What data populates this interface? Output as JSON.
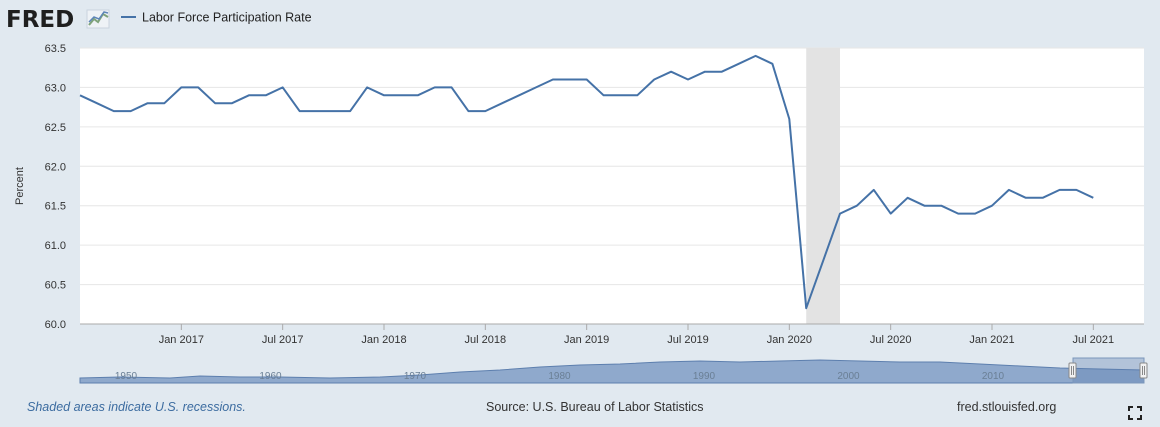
{
  "brand": {
    "logo_text": "FRED"
  },
  "colors": {
    "line": "#4572a7",
    "recession": "#e3e3e3",
    "navigator_fill": "#8fa9cc",
    "background": "#e1e9f0"
  },
  "chart_data": {
    "type": "line",
    "legend": [
      "Labor Force Participation Rate"
    ],
    "ylabel": "Percent",
    "ylim": [
      60.0,
      63.5
    ],
    "yticks": [
      "60.0",
      "60.5",
      "61.0",
      "61.5",
      "62.0",
      "62.5",
      "63.0",
      "63.5"
    ],
    "xrange": [
      "2016-07",
      "2021-10"
    ],
    "xticks": [
      {
        "date": "2017-01",
        "label": "Jan 2017"
      },
      {
        "date": "2017-07",
        "label": "Jul 2017"
      },
      {
        "date": "2018-01",
        "label": "Jan 2018"
      },
      {
        "date": "2018-07",
        "label": "Jul 2018"
      },
      {
        "date": "2019-01",
        "label": "Jan 2019"
      },
      {
        "date": "2019-07",
        "label": "Jul 2019"
      },
      {
        "date": "2020-01",
        "label": "Jan 2020"
      },
      {
        "date": "2020-07",
        "label": "Jul 2020"
      },
      {
        "date": "2021-01",
        "label": "Jan 2021"
      },
      {
        "date": "2021-07",
        "label": "Jul 2021"
      }
    ],
    "recessions": [
      {
        "start": "2020-02",
        "end": "2020-04"
      }
    ],
    "series": [
      {
        "name": "Labor Force Participation Rate",
        "points": [
          [
            "2016-07",
            62.9
          ],
          [
            "2016-08",
            62.8
          ],
          [
            "2016-09",
            62.7
          ],
          [
            "2016-10",
            62.7
          ],
          [
            "2016-11",
            62.8
          ],
          [
            "2016-12",
            62.8
          ],
          [
            "2017-01",
            63.0
          ],
          [
            "2017-02",
            63.0
          ],
          [
            "2017-03",
            62.8
          ],
          [
            "2017-04",
            62.8
          ],
          [
            "2017-05",
            62.9
          ],
          [
            "2017-06",
            62.9
          ],
          [
            "2017-07",
            63.0
          ],
          [
            "2017-08",
            62.7
          ],
          [
            "2017-09",
            62.7
          ],
          [
            "2017-10",
            62.7
          ],
          [
            "2017-11",
            62.7
          ],
          [
            "2017-12",
            63.0
          ],
          [
            "2018-01",
            62.9
          ],
          [
            "2018-02",
            62.9
          ],
          [
            "2018-03",
            62.9
          ],
          [
            "2018-04",
            63.0
          ],
          [
            "2018-05",
            63.0
          ],
          [
            "2018-06",
            62.7
          ],
          [
            "2018-07",
            62.7
          ],
          [
            "2018-08",
            62.8
          ],
          [
            "2018-09",
            62.9
          ],
          [
            "2018-10",
            63.0
          ],
          [
            "2018-11",
            63.1
          ],
          [
            "2018-12",
            63.1
          ],
          [
            "2019-01",
            63.1
          ],
          [
            "2019-02",
            62.9
          ],
          [
            "2019-03",
            62.9
          ],
          [
            "2019-04",
            62.9
          ],
          [
            "2019-05",
            63.1
          ],
          [
            "2019-06",
            63.2
          ],
          [
            "2019-07",
            63.1
          ],
          [
            "2019-08",
            63.2
          ],
          [
            "2019-09",
            63.2
          ],
          [
            "2019-10",
            63.3
          ],
          [
            "2019-11",
            63.4
          ],
          [
            "2019-12",
            63.3
          ],
          [
            "2020-01",
            62.6
          ],
          [
            "2020-02",
            60.2
          ],
          [
            "2020-03",
            60.8
          ],
          [
            "2020-04",
            61.4
          ],
          [
            "2020-05",
            61.5
          ],
          [
            "2020-06",
            61.7
          ],
          [
            "2020-07",
            61.4
          ],
          [
            "2020-08",
            61.6
          ],
          [
            "2020-09",
            61.5
          ],
          [
            "2020-10",
            61.5
          ],
          [
            "2020-11",
            61.4
          ],
          [
            "2020-12",
            61.4
          ],
          [
            "2021-01",
            61.5
          ],
          [
            "2021-02",
            61.7
          ],
          [
            "2021-03",
            61.6
          ],
          [
            "2021-04",
            61.6
          ],
          [
            "2021-05",
            61.7
          ],
          [
            "2021-06",
            61.7
          ],
          [
            "2021-07",
            61.6
          ]
        ]
      }
    ],
    "navigator": {
      "labels": [
        "1950",
        "1960",
        "1970",
        "1980",
        "1990",
        "2000",
        "2010"
      ],
      "selection": [
        "2016-07",
        "2021-10"
      ]
    }
  },
  "footer": {
    "note": "Shaded areas indicate U.S. recessions.",
    "source": "Source: U.S. Bureau of Labor Statistics",
    "site": "fred.stlouisfed.org"
  }
}
